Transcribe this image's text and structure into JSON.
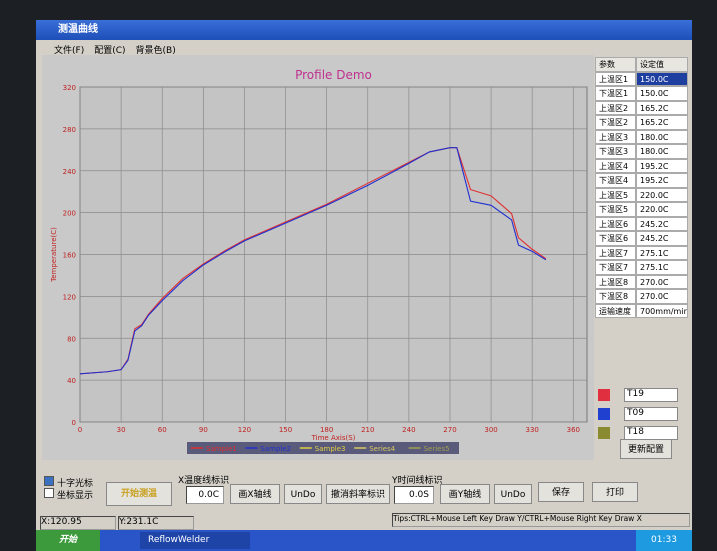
{
  "window": {
    "title": "测温曲线",
    "menu": [
      "文件(F)",
      "配置(C)",
      "背景色(B)"
    ]
  },
  "chart_data": {
    "type": "line",
    "title": "Profile Demo",
    "x_label": "Time Axis(S)",
    "y_label": "Temperature(C)",
    "x": [
      0,
      20,
      30,
      35,
      40,
      45,
      50,
      60,
      75,
      90,
      105,
      120,
      150,
      180,
      210,
      240,
      255,
      270,
      275,
      285,
      300,
      315,
      320,
      330,
      340
    ],
    "series": [
      {
        "name": "Sample1",
        "color": "#e03030",
        "values": [
          46,
          48,
          50,
          60,
          89,
          93,
          103,
          118,
          137,
          151,
          163,
          174,
          191,
          208,
          228,
          248,
          258,
          262,
          262,
          222,
          216,
          199,
          176,
          165,
          156
        ]
      },
      {
        "name": "Sample2",
        "color": "#2030d0",
        "values": [
          46,
          48,
          50,
          59,
          87,
          92,
          102,
          116,
          135,
          150,
          162,
          173,
          190,
          207,
          226,
          247,
          258,
          262,
          262,
          211,
          207,
          193,
          169,
          163,
          155
        ]
      },
      {
        "name": "Sample3",
        "color": "#e0d040"
      },
      {
        "name": "Series4",
        "color": "#d8c860"
      },
      {
        "name": "Series5",
        "color": "#a0a050"
      }
    ],
    "xlim": [
      0,
      370
    ],
    "xticks": [
      0,
      30,
      60,
      90,
      120,
      150,
      180,
      210,
      240,
      270,
      300,
      330,
      360
    ],
    "ylim": [
      0,
      320
    ],
    "yticks": [
      0,
      40,
      80,
      120,
      160,
      200,
      240,
      280,
      320
    ],
    "grid": true
  },
  "table": {
    "headers": [
      "参数",
      "设定值"
    ],
    "rows": [
      [
        "上温区1",
        "150.0C"
      ],
      [
        "下温区1",
        "150.0C"
      ],
      [
        "上温区2",
        "165.2C"
      ],
      [
        "下温区2",
        "165.2C"
      ],
      [
        "上温区3",
        "180.0C"
      ],
      [
        "下温区3",
        "180.0C"
      ],
      [
        "上温区4",
        "195.2C"
      ],
      [
        "下温区4",
        "195.2C"
      ],
      [
        "上温区5",
        "220.0C"
      ],
      [
        "下温区5",
        "220.0C"
      ],
      [
        "上温区6",
        "245.2C"
      ],
      [
        "下温区6",
        "245.2C"
      ],
      [
        "上温区7",
        "275.1C"
      ],
      [
        "下温区7",
        "275.1C"
      ],
      [
        "上温区8",
        "270.0C"
      ],
      [
        "下温区8",
        "270.0C"
      ],
      [
        "运输速度",
        "700mm/min"
      ]
    ]
  },
  "channels": [
    {
      "color": "#e03040",
      "label": "T19"
    },
    {
      "color": "#2040d0",
      "label": "T09"
    },
    {
      "color": "#8a8a30",
      "label": "T18"
    }
  ],
  "update_button": "更新配置",
  "controls": {
    "crosshair": "十字光标",
    "coords": "坐标显示",
    "start": "开始测温",
    "x_mark_label": "X温度线标识",
    "x_input": "0.0C",
    "draw_x": "画X轴线",
    "undo1": "UnDo",
    "undo_slope": "撤消斜率标识",
    "y_mark_label": "Y时间线标识",
    "y_input": "0.0S",
    "draw_y": "画Y轴线",
    "undo2": "UnDo",
    "save": "保存",
    "print": "打印"
  },
  "status": {
    "x": "X:120.95",
    "y": "Y:231.1C",
    "tips": "Tips:CTRL+Mouse Left Key Draw Y/CTRL+Mouse Right Key Draw X"
  },
  "taskbar": {
    "start": "开始",
    "app": "ReflowWelder",
    "clock": "01:33"
  }
}
